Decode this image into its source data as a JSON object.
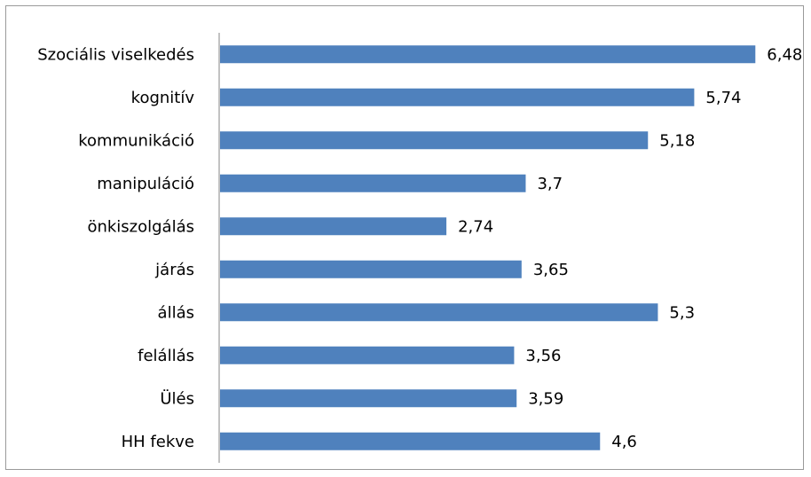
{
  "chart_data": {
    "type": "bar",
    "orientation": "horizontal",
    "categories": [
      "Szociális viselkedés",
      "kognitív",
      "kommunikáció",
      "manipuláció",
      "önkiszolgálás",
      "járás",
      "állás",
      "felállás",
      "Ülés",
      "HH fekve"
    ],
    "values": [
      6.48,
      5.74,
      5.18,
      3.7,
      2.74,
      3.65,
      5.3,
      3.56,
      3.59,
      4.6
    ],
    "value_labels": [
      "6,48",
      "5,74",
      "5,18",
      "3,7",
      "2,74",
      "3,65",
      "5,3",
      "3,56",
      "3,59",
      "4,6"
    ],
    "xlim": [
      0,
      7
    ],
    "grid": false,
    "legend": "none",
    "bar_color": "#4F81BD",
    "axis_color": "#868686"
  }
}
